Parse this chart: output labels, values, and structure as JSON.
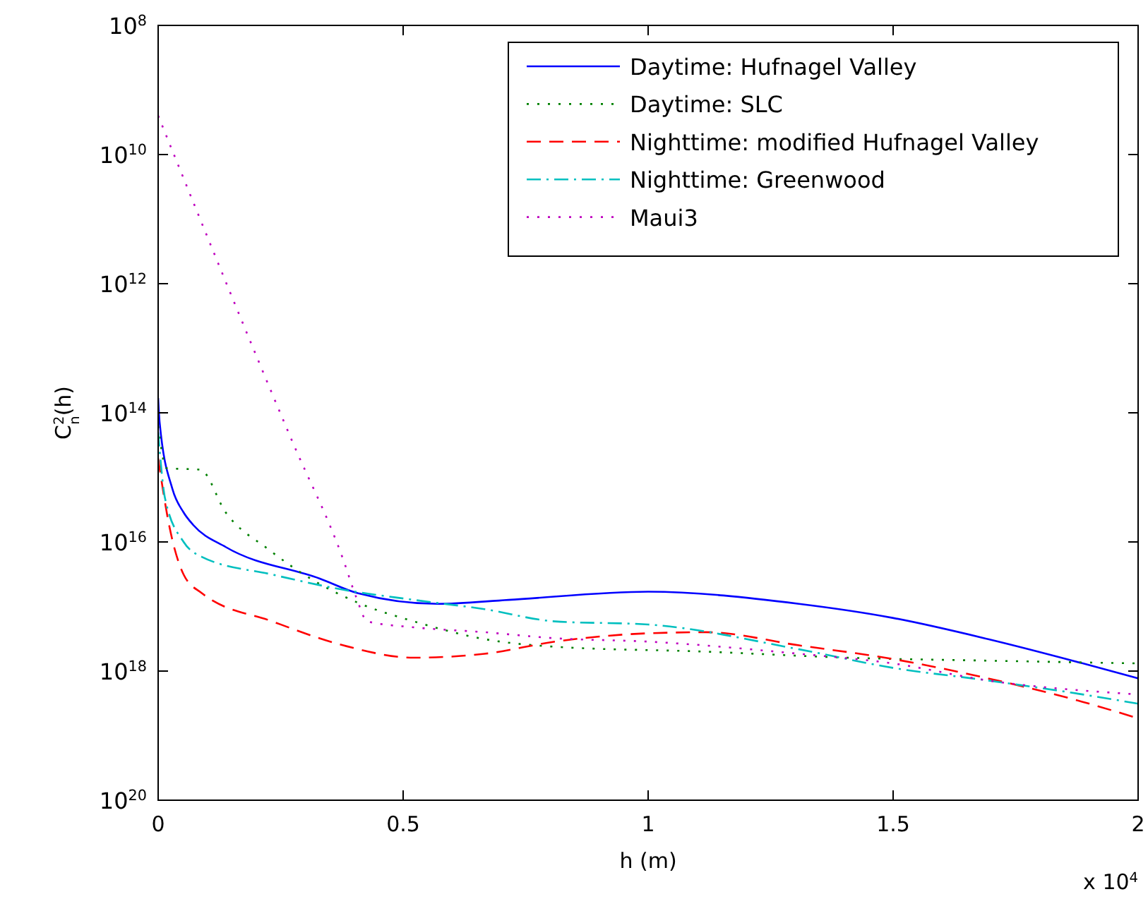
{
  "chart_data": {
    "type": "line",
    "xlabel": "h (m)",
    "ylabel": "C$^{2}$$_{n}$(h)",
    "annotations": [
      "x 10$^{4}$"
    ],
    "xlim": [
      0,
      2
    ],
    "xticks": [
      0,
      0.5,
      1,
      1.5,
      2
    ],
    "ylim": [
      1e+20,
      100000000.0
    ],
    "yticks": [
      {
        "value": 100000000.0,
        "label": "10$^{8}$"
      },
      {
        "value": 10000000000.0,
        "label": "10$^{10}$"
      },
      {
        "value": 1000000000000.0,
        "label": "10$^{12}$"
      },
      {
        "value": 100000000000000.0,
        "label": "10$^{14}$"
      },
      {
        "value": 1e+16,
        "label": "10$^{16}$"
      },
      {
        "value": 1e+18,
        "label": "10$^{18}$"
      },
      {
        "value": 1e+20,
        "label": "10$^{20}$"
      }
    ],
    "log": "y",
    "grid": false,
    "legend": "top right",
    "series": [
      {
        "name": "Daytime: Hufnagel Valley",
        "color": "#0000ff",
        "line_style": "solid",
        "x": [
          0,
          0.003,
          0.029,
          0.052,
          0.072,
          0.138,
          0.33,
          0.407,
          0.57,
          0.715,
          1.0,
          1.308,
          1.499,
          1.694,
          1.887,
          2.0
        ],
        "values": [
          59000000000000.0,
          140000000000000.0,
          1500000000000000.0,
          3500000000000000.0,
          5500000000000000.0,
          1.2e+16,
          3.7e+16,
          6.2e+16,
          9.1e+16,
          7.9e+16,
          5.9e+16,
          9.1e+16,
          1.5e+17,
          3.2e+17,
          7.6e+17,
          1.3e+18
        ]
      },
      {
        "name": "Daytime: SLC",
        "color": "#008000",
        "line_style": "dotted",
        "x": [
          0,
          0.017,
          0.086,
          0.138,
          0.225,
          0.311,
          0.407,
          0.522,
          0.666,
          0.81,
          1.118,
          1.406,
          1.694,
          2.0
        ],
        "values": [
          160000000000000.0,
          720000000000000.0,
          760000000000000.0,
          3500000000000000.0,
          1.3e+16,
          3.7e+16,
          8.7e+16,
          1.7e+17,
          3.2e+17,
          4.2e+17,
          5e+17,
          6.2e+17,
          6.9e+17,
          7.6e+17
        ]
      },
      {
        "name": "Nighttime: modified Hufnagel Valley",
        "color": "#ff0000",
        "line_style": "dashed",
        "x": [
          0,
          0.023,
          0.052,
          0.089,
          0.233,
          0.378,
          0.522,
          0.666,
          0.81,
          1.0,
          1.118,
          1.308,
          1.499,
          1.694,
          1.887,
          2.0
        ],
        "values": [
          510000000000000.0,
          5800000000000000.0,
          3.2e+16,
          6.2e+16,
          1.7e+17,
          4e+17,
          6.2e+17,
          5.4e+17,
          3.5e+17,
          2.6e+17,
          2.5e+17,
          4e+17,
          6.5e+17,
          1.3e+18,
          3e+18,
          5.4e+18
        ]
      },
      {
        "name": "Nighttime: Greenwood",
        "color": "#00bfbf",
        "line_style": "dashdot",
        "x": [
          0,
          0.014,
          0.052,
          0.089,
          0.233,
          0.378,
          0.522,
          0.666,
          0.81,
          1.0,
          1.308,
          1.499,
          1.694,
          1.887,
          2.0
        ],
        "values": [
          200000000000000.0,
          2100000000000000.0,
          1e+16,
          1.7e+16,
          3.2e+16,
          5.5e+16,
          7.9e+16,
          1.1e+17,
          1.7e+17,
          1.9e+17,
          4.6e+17,
          8.9e+17,
          1.4e+18,
          2.3e+18,
          3.2e+18
        ]
      },
      {
        "name": "Maui3",
        "color": "#bf00bf",
        "line_style": "dotted",
        "x": [
          0,
          0.274,
          0.378,
          0.404,
          0.427,
          0.522,
          0.666,
          0.81,
          1.0,
          1.308,
          1.499,
          1.694,
          2.0
        ],
        "values": [
          2500000000.0,
          280000000000000.0,
          1.9e+16,
          7.1e+16,
          1.7e+17,
          2.1e+17,
          2.5e+17,
          3.1e+17,
          3.5e+17,
          5.4e+17,
          7.6e+17,
          1.4e+18,
          2.3e+18
        ]
      }
    ]
  }
}
